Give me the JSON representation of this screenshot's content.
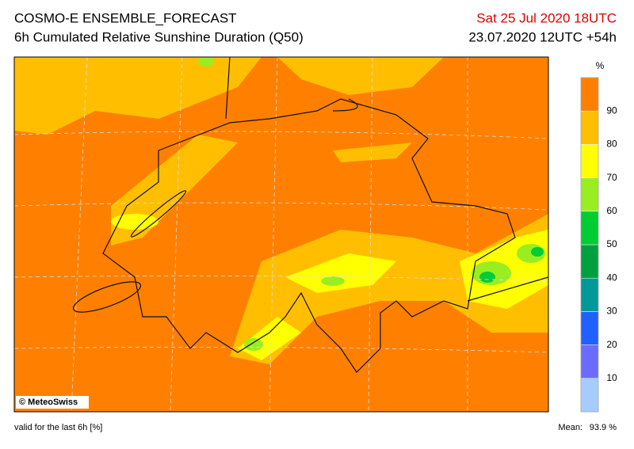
{
  "header": {
    "title": "COSMO-E ENSEMBLE_FORECAST",
    "subtitle": "6h Cumulated Relative Sunshine Duration (Q50)",
    "valid_time": "Sat 25 Jul 2020 18UTC",
    "run": "23.07.2020 12UTC +54h"
  },
  "legend": {
    "unit": "%",
    "ticks": [
      10,
      20,
      30,
      40,
      50,
      60,
      70,
      80,
      90
    ],
    "colors": [
      "#a6ccff",
      "#6b6bff",
      "#2060ff",
      "#009999",
      "#00a040",
      "#00cc33",
      "#99ee22",
      "#ffff00",
      "#ffbf00",
      "#ff8000"
    ]
  },
  "map": {
    "copyright": "© MeteoSwiss"
  },
  "footer": {
    "note": "valid for the last 6h [%]",
    "mean_label": "Mean:",
    "mean_value": "93.9 %"
  }
}
